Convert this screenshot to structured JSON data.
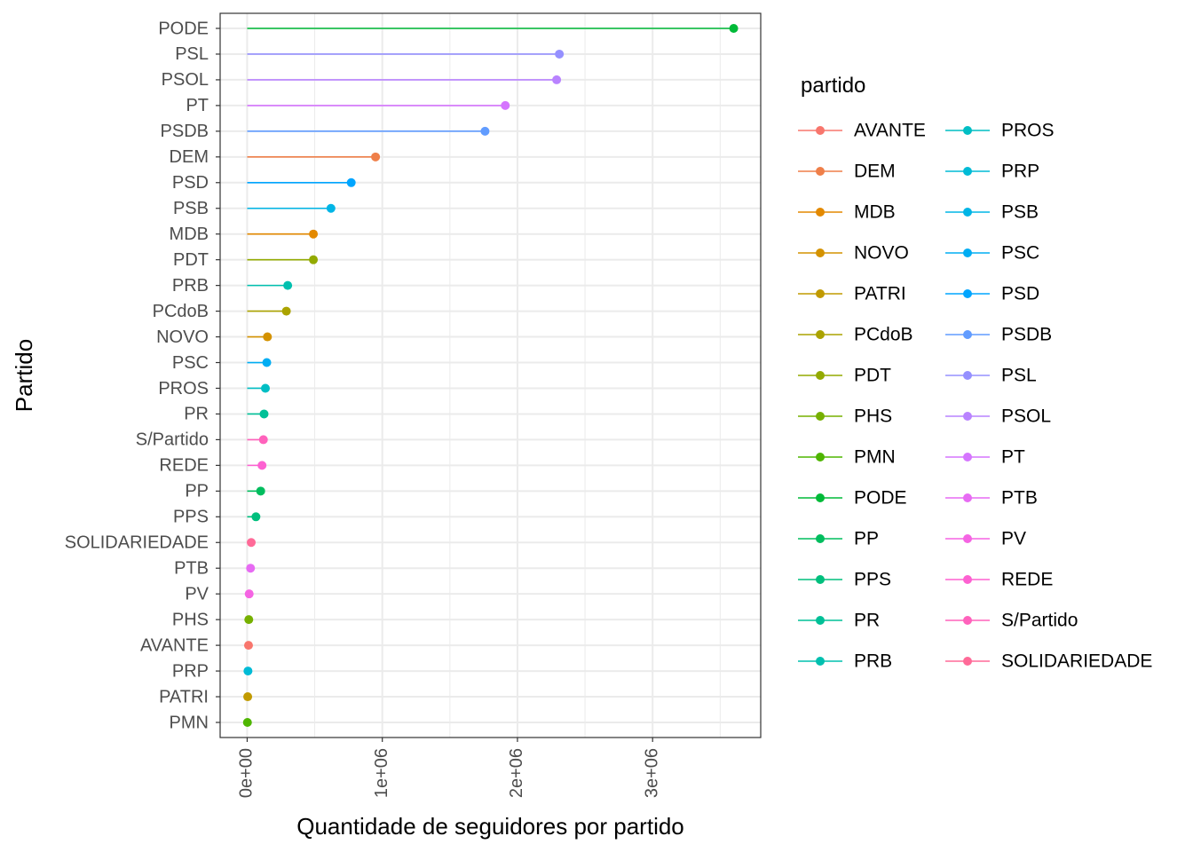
{
  "chart_data": {
    "type": "lollipop",
    "xlabel": "Quantidade de seguidores por partido",
    "ylabel": "Partido",
    "xlim": [
      -200000,
      3800000
    ],
    "x_ticks": [
      0,
      1000000,
      2000000,
      3000000
    ],
    "x_tick_labels": [
      "0e+00",
      "1e+06",
      "2e+06",
      "3e+06"
    ],
    "grid": true,
    "legend": {
      "title": "partido",
      "placement": "right",
      "columns": 2,
      "entries": [
        {
          "name": "AVANTE",
          "color": "#F8766D"
        },
        {
          "name": "DEM",
          "color": "#EF7F49"
        },
        {
          "name": "MDB",
          "color": "#E38900"
        },
        {
          "name": "NOVO",
          "color": "#D49200"
        },
        {
          "name": "PATRI",
          "color": "#C19A00"
        },
        {
          "name": "PCdoB",
          "color": "#ABA300"
        },
        {
          "name": "PDT",
          "color": "#93AA00"
        },
        {
          "name": "PHS",
          "color": "#76B000"
        },
        {
          "name": "PMN",
          "color": "#4EB500"
        },
        {
          "name": "PODE",
          "color": "#00BA38"
        },
        {
          "name": "PP",
          "color": "#00BD5E"
        },
        {
          "name": "PPS",
          "color": "#00BF7D"
        },
        {
          "name": "PR",
          "color": "#00C097"
        },
        {
          "name": "PRB",
          "color": "#00C0AF"
        },
        {
          "name": "PROS",
          "color": "#00BEC4"
        },
        {
          "name": "PRP",
          "color": "#00BBD6"
        },
        {
          "name": "PSB",
          "color": "#00B5E6"
        },
        {
          "name": "PSC",
          "color": "#00ADF3"
        },
        {
          "name": "PSD",
          "color": "#00A5FF"
        },
        {
          "name": "PSDB",
          "color": "#619CFF"
        },
        {
          "name": "PSL",
          "color": "#9590FF"
        },
        {
          "name": "PSOL",
          "color": "#B983FF"
        },
        {
          "name": "PT",
          "color": "#D575FE"
        },
        {
          "name": "PTB",
          "color": "#E76BF3"
        },
        {
          "name": "PV",
          "color": "#F564E3"
        },
        {
          "name": "REDE",
          "color": "#FD61D1"
        },
        {
          "name": "S/Partido",
          "color": "#FF62BC"
        },
        {
          "name": "SOLIDARIEDADE",
          "color": "#FF6A98"
        }
      ]
    },
    "categories": [
      "PODE",
      "PSL",
      "PSOL",
      "PT",
      "PSDB",
      "DEM",
      "PSD",
      "PSB",
      "MDB",
      "PDT",
      "PRB",
      "PCdoB",
      "NOVO",
      "PSC",
      "PROS",
      "PR",
      "S/Partido",
      "REDE",
      "PP",
      "PPS",
      "SOLIDARIEDADE",
      "PTB",
      "PV",
      "PHS",
      "AVANTE",
      "PRP",
      "PATRI",
      "PMN"
    ],
    "values": [
      3600000,
      2310000,
      2290000,
      1910000,
      1760000,
      950000,
      770000,
      620000,
      490000,
      490000,
      300000,
      290000,
      150000,
      145000,
      135000,
      125000,
      120000,
      110000,
      100000,
      65000,
      30000,
      25000,
      15000,
      12000,
      10000,
      6000,
      4000,
      2000
    ]
  }
}
